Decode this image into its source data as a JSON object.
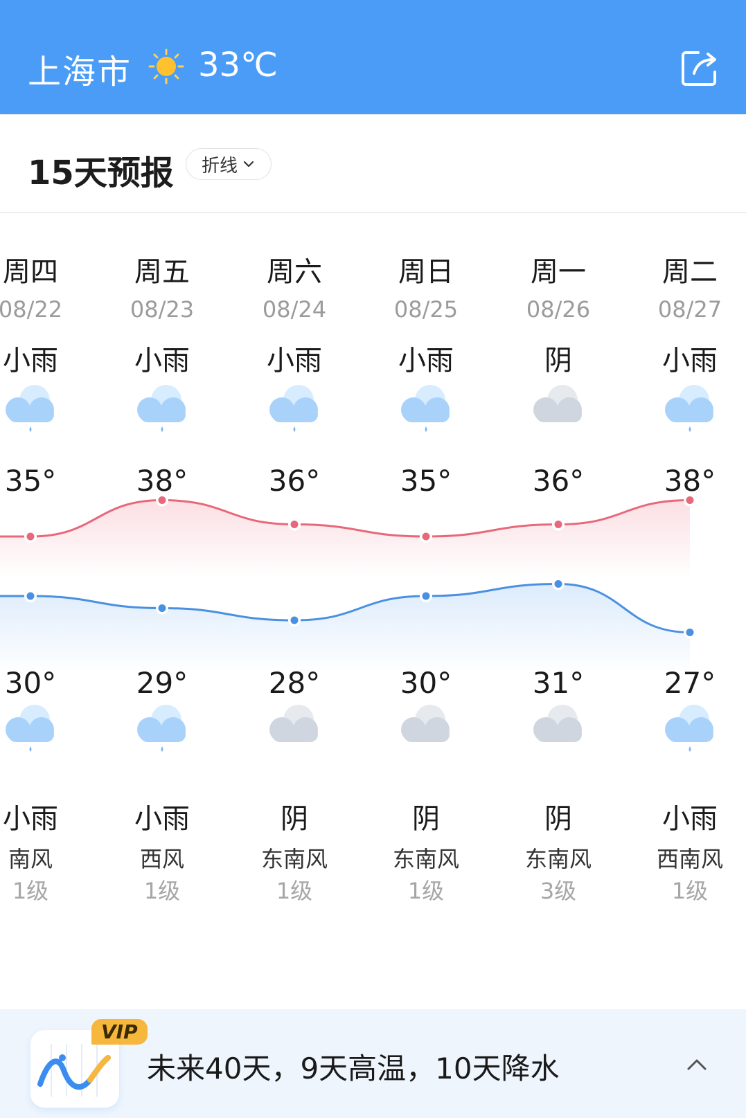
{
  "header": {
    "city": "上海市",
    "temperature": "33℃",
    "weather_icon": "sun-icon",
    "share_icon": "share-icon",
    "bg_color": "#4a9cf6"
  },
  "forecast": {
    "title": "15天预报",
    "mode_label": "折线",
    "days": [
      {
        "weekday": "周四",
        "date": "08/22",
        "day_weather": "小雨",
        "day_icon": "rain-cloud-icon",
        "high": "35°",
        "low": "30°",
        "night_icon": "rain-cloud-icon",
        "night_weather": "小雨",
        "wind": "南风",
        "level": "1级"
      },
      {
        "weekday": "周五",
        "date": "08/23",
        "day_weather": "小雨",
        "day_icon": "rain-cloud-icon",
        "high": "38°",
        "low": "29°",
        "night_icon": "rain-cloud-icon",
        "night_weather": "小雨",
        "wind": "西风",
        "level": "1级"
      },
      {
        "weekday": "周六",
        "date": "08/24",
        "day_weather": "小雨",
        "day_icon": "rain-cloud-icon",
        "high": "36°",
        "low": "28°",
        "night_icon": "overcast-icon",
        "night_weather": "阴",
        "wind": "东南风",
        "level": "1级"
      },
      {
        "weekday": "周日",
        "date": "08/25",
        "day_weather": "小雨",
        "day_icon": "rain-cloud-icon",
        "high": "35°",
        "low": "30°",
        "night_icon": "overcast-icon",
        "night_weather": "阴",
        "wind": "东南风",
        "level": "1级"
      },
      {
        "weekday": "周一",
        "date": "08/26",
        "day_weather": "阴",
        "day_icon": "overcast-icon",
        "high": "36°",
        "low": "31°",
        "night_icon": "overcast-icon",
        "night_weather": "阴",
        "wind": "东南风",
        "level": "3级"
      },
      {
        "weekday": "周二",
        "date": "08/27",
        "day_weather": "小雨",
        "day_icon": "rain-cloud-icon",
        "high": "38°",
        "low": "27°",
        "night_icon": "rain-cloud-icon",
        "night_weather": "小雨",
        "wind": "西南风",
        "level": "1级"
      }
    ],
    "high_line_color": "#e8687b",
    "low_line_color": "#4a90e2"
  },
  "banner": {
    "badge": "VIP",
    "text": "未来40天，9天高温，10天降水",
    "icon": "trend-chart-icon",
    "toggle_icon": "chevron-up-icon"
  }
}
